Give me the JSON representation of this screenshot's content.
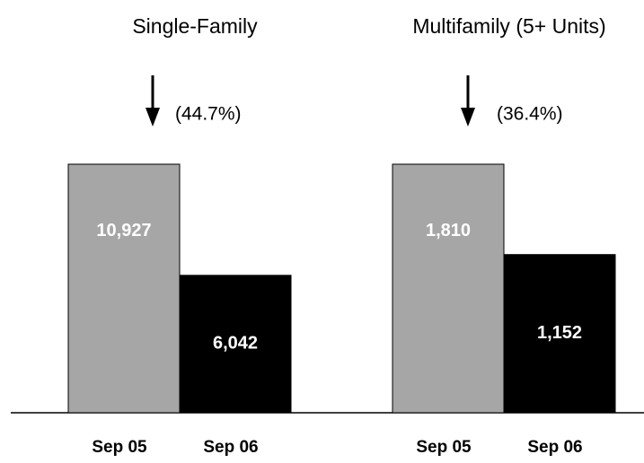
{
  "chart_data": [
    {
      "type": "bar",
      "title": "Single-Family",
      "annotation": "(44.7%)",
      "categories": [
        "Sep 05",
        "Sep 06"
      ],
      "values": [
        10927,
        6042
      ],
      "value_labels": [
        "10,927",
        "6,042"
      ],
      "colors": [
        "#a6a6a6",
        "#000000"
      ]
    },
    {
      "type": "bar",
      "title": "Multifamily (5+ Units)",
      "annotation": "(36.4%)",
      "categories": [
        "Sep 05",
        "Sep 06"
      ],
      "values": [
        1810,
        1152
      ],
      "value_labels": [
        "1,810",
        "1,152"
      ],
      "colors": [
        "#a6a6a6",
        "#000000"
      ]
    }
  ]
}
